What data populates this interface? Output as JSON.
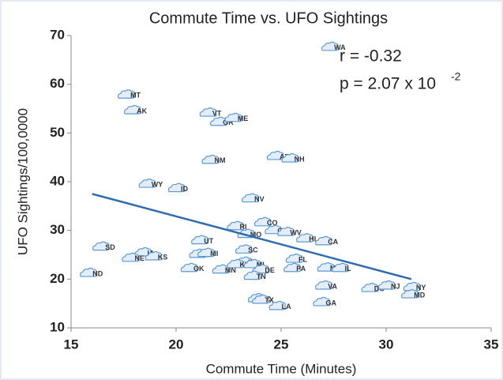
{
  "chart_data": {
    "type": "scatter",
    "title": "Commute Time vs. UFO Sightings",
    "xlabel": "Commute Time (Minutes)",
    "ylabel": "UFO Sightings/100,0000",
    "annotations": [
      "r = -0.32",
      "p = 2.07 x 10",
      "-2"
    ],
    "xlim": [
      15,
      35
    ],
    "xticks": [
      15,
      20,
      25,
      30,
      35
    ],
    "ylim": [
      10,
      70
    ],
    "yticks": [
      10,
      20,
      30,
      40,
      50,
      60,
      70
    ],
    "color": "#5b9bd5",
    "labels": [
      "WA",
      "MT",
      "AK",
      "VT",
      "OR",
      "ME",
      "NM",
      "AZ",
      "NH",
      "WY",
      "ID",
      "NV",
      "CO",
      "CT",
      "WV",
      "RI",
      "MO",
      "HI",
      "CA",
      "UT",
      "SD",
      "SC",
      "WI",
      "MI",
      "IA",
      "KS",
      "NE",
      "ND",
      "OK",
      "MN",
      "IN",
      "KY",
      "MI",
      "DE",
      "TN",
      "FL",
      "PA",
      "MA",
      "IL",
      "VA",
      "DC",
      "NJ",
      "NY",
      "MD",
      "NC",
      "TX",
      "LA",
      "GA"
    ],
    "x": [
      27.3,
      17.6,
      17.9,
      21.5,
      22.0,
      22.7,
      21.6,
      24.7,
      25.4,
      18.6,
      20.0,
      23.5,
      24.1,
      24.6,
      25.2,
      22.8,
      23.3,
      26.1,
      27.0,
      21.1,
      16.4,
      23.2,
      21.0,
      21.4,
      18.4,
      18.9,
      17.8,
      15.8,
      20.6,
      22.1,
      23.2,
      22.8,
      23.6,
      24.0,
      23.6,
      25.6,
      25.5,
      27.1,
      27.8,
      27.0,
      29.2,
      30.0,
      31.2,
      31.1,
      23.8,
      24.0,
      24.8,
      26.9
    ],
    "values": [
      67.6,
      57.8,
      54.6,
      54.1,
      52.2,
      53.0,
      44.4,
      45.2,
      44.7,
      39.5,
      38.6,
      36.5,
      31.6,
      30.0,
      29.6,
      30.8,
      29.2,
      28.3,
      27.7,
      27.9,
      26.6,
      26.0,
      25.1,
      25.3,
      25.4,
      24.6,
      24.3,
      21.2,
      22.2,
      21.9,
      23.5,
      23.0,
      23.0,
      21.9,
      20.6,
      24.1,
      22.2,
      22.3,
      22.2,
      18.6,
      18.1,
      18.6,
      18.3,
      16.8,
      16.0,
      15.7,
      14.4,
      15.2
    ],
    "trendline": {
      "color": "#2e6bb0",
      "x": [
        16,
        31.2
      ],
      "values": [
        37.5,
        20
      ]
    }
  }
}
